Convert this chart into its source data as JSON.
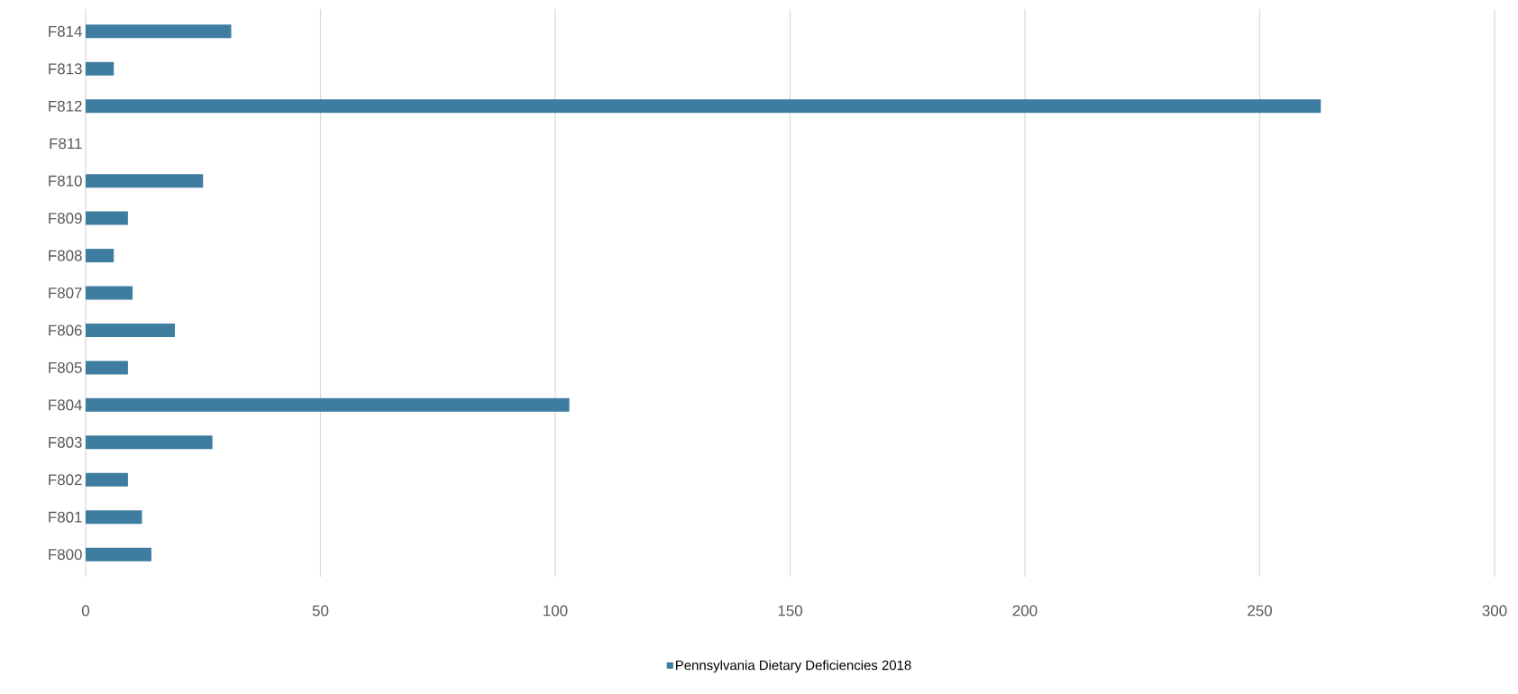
{
  "chart_data": {
    "type": "bar",
    "orientation": "horizontal",
    "categories": [
      "F814",
      "F813",
      "F812",
      "F811",
      "F810",
      "F809",
      "F808",
      "F807",
      "F806",
      "F805",
      "F804",
      "F803",
      "F802",
      "F801",
      "F800"
    ],
    "series": [
      {
        "name": "Pennsylvania Dietary Deficiencies 2018",
        "color": "#3e7ca0",
        "values": [
          31,
          6,
          263,
          0,
          25,
          9,
          6,
          10,
          19,
          9,
          103,
          27,
          9,
          12,
          14
        ]
      }
    ],
    "xlim": [
      0,
      300
    ],
    "xticks": [
      0,
      50,
      100,
      150,
      200,
      250,
      300
    ],
    "grid": "x",
    "legend": "bottom"
  }
}
